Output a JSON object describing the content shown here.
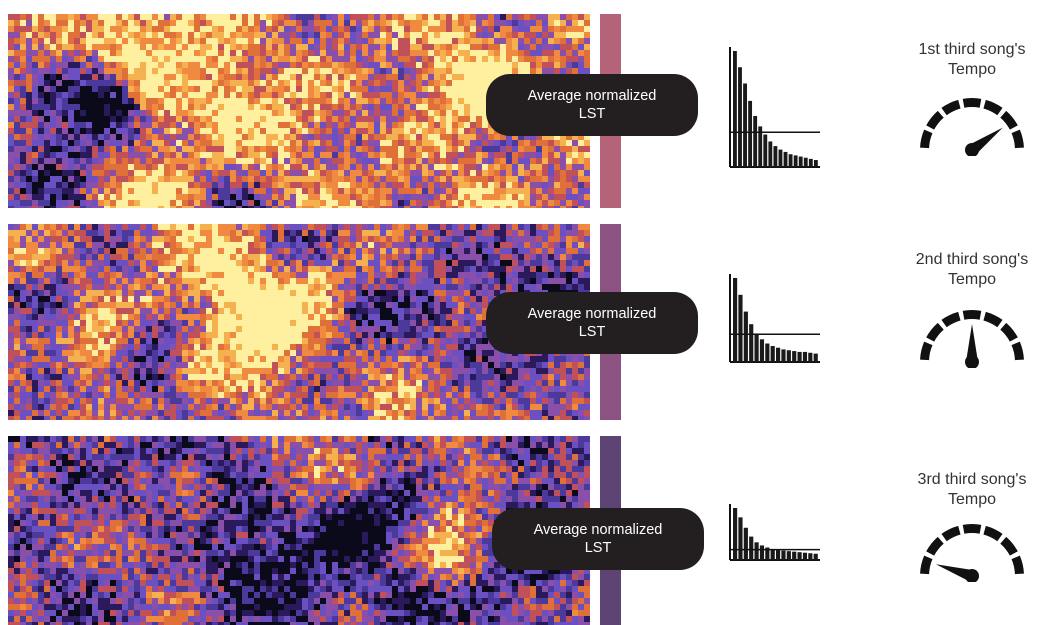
{
  "panels": [
    {
      "id": "panel-1",
      "label_line1": "Average normalized",
      "label_line2": "LST",
      "colorbar_color": "#b56378",
      "histogram_values": [
        100,
        86,
        72,
        57,
        44,
        35,
        28,
        22,
        18,
        15,
        13,
        11,
        10,
        9,
        8,
        7,
        6
      ],
      "histogram_reference_level": 0.3,
      "gauge_title_line1": "1st third song's",
      "gauge_title_line2": "Tempo",
      "gauge_level": 0.8
    },
    {
      "id": "panel-2",
      "label_line1": "Average normalized",
      "label_line2": "LST",
      "colorbar_color": "#8c5382",
      "histogram_values": [
        100,
        80,
        60,
        45,
        34,
        27,
        22,
        19,
        17,
        15,
        14,
        13,
        12,
        12,
        11,
        10
      ],
      "histogram_reference_level": 0.33,
      "gauge_title_line1": "2nd third song's",
      "gauge_title_line2": "Tempo",
      "gauge_level": 0.5
    },
    {
      "id": "panel-3",
      "label_line1": "Average normalized",
      "label_line2": "LST",
      "colorbar_color": "#5e4474",
      "histogram_values": [
        100,
        82,
        62,
        45,
        34,
        28,
        24,
        21,
        19,
        18,
        17,
        16,
        15,
        14,
        13,
        12
      ],
      "histogram_reference_level": 0.2,
      "gauge_title_line1": "3rd third song's",
      "gauge_title_line2": "Tempo",
      "gauge_level": 0.1
    }
  ],
  "heatmap_palette": [
    "#0b0a1a",
    "#2a1a5c",
    "#4b3a9c",
    "#6a50c0",
    "#8a4fa8",
    "#c0505a",
    "#e0703a",
    "#f08a40",
    "#f5b050",
    "#fff0a0"
  ]
}
